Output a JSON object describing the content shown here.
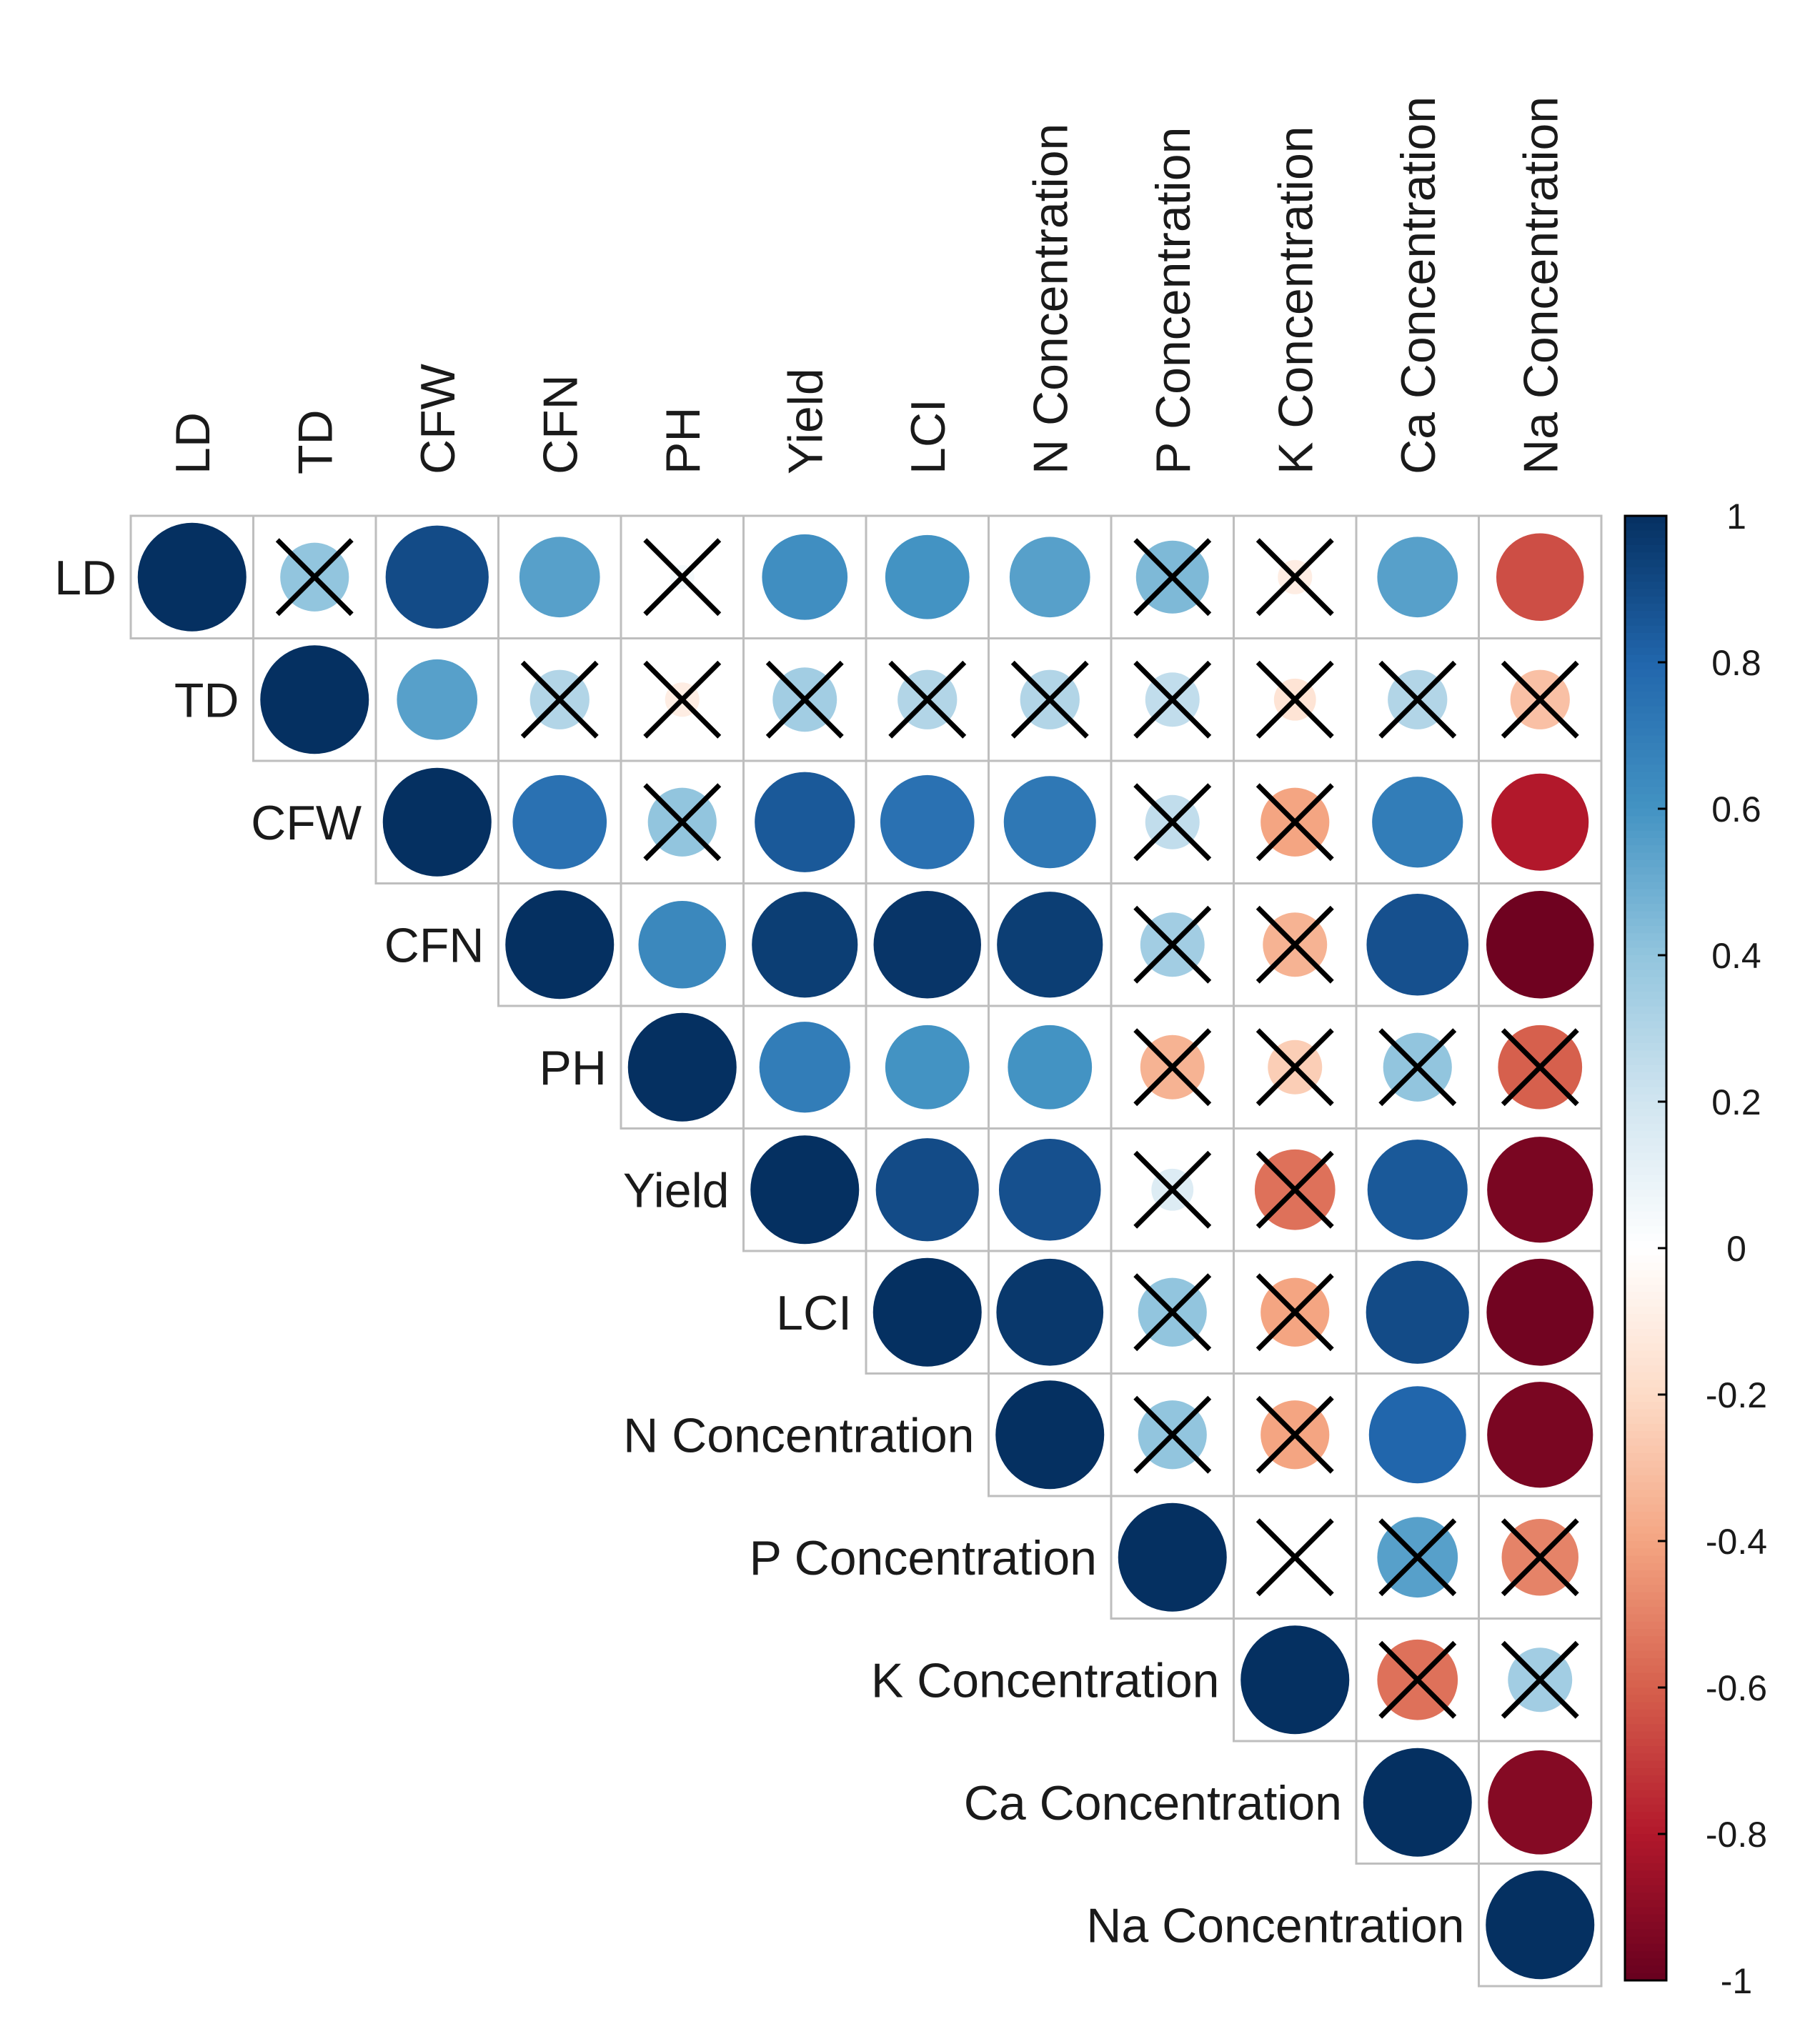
{
  "chart_data": {
    "type": "heatmap",
    "subtype": "correlation-matrix-upper-circles",
    "variables": [
      "LD",
      "TD",
      "CFW",
      "CFN",
      "PH",
      "Yield",
      "LCI",
      "N Concentration",
      "P Concentration",
      "K Concentration",
      "Ca Concentration",
      "Na Concentration"
    ],
    "matrix": [
      [
        1.0,
        0.4,
        0.9,
        0.55,
        0.05,
        0.62,
        0.6,
        0.55,
        0.45,
        -0.1,
        0.55,
        -0.65
      ],
      [
        null,
        1.0,
        0.55,
        0.3,
        -0.1,
        0.35,
        0.3,
        0.3,
        0.25,
        -0.15,
        0.3,
        -0.3
      ],
      [
        null,
        null,
        1.0,
        0.75,
        0.4,
        0.85,
        0.75,
        0.72,
        0.25,
        -0.4,
        0.7,
        -0.8
      ],
      [
        null,
        null,
        null,
        1.0,
        0.65,
        0.95,
        0.98,
        0.95,
        0.35,
        -0.35,
        0.88,
        -0.98
      ],
      [
        null,
        null,
        null,
        null,
        1.0,
        0.7,
        0.6,
        0.6,
        -0.35,
        -0.25,
        0.4,
        -0.6
      ],
      [
        null,
        null,
        null,
        null,
        null,
        1.0,
        0.9,
        0.88,
        0.15,
        -0.55,
        0.85,
        -0.95
      ],
      [
        null,
        null,
        null,
        null,
        null,
        null,
        1.0,
        0.97,
        0.4,
        -0.4,
        0.9,
        -0.97
      ],
      [
        null,
        null,
        null,
        null,
        null,
        null,
        null,
        1.0,
        0.4,
        -0.4,
        0.8,
        -0.95
      ],
      [
        null,
        null,
        null,
        null,
        null,
        null,
        null,
        null,
        1.0,
        0.0,
        0.55,
        -0.5
      ],
      [
        null,
        null,
        null,
        null,
        null,
        null,
        null,
        null,
        null,
        1.0,
        -0.55,
        0.35
      ],
      [
        null,
        null,
        null,
        null,
        null,
        null,
        null,
        null,
        null,
        null,
        1.0,
        -0.92
      ],
      [
        null,
        null,
        null,
        null,
        null,
        null,
        null,
        null,
        null,
        null,
        null,
        1.0
      ]
    ],
    "crossed_cells": [
      [
        0,
        1
      ],
      [
        0,
        4
      ],
      [
        0,
        8
      ],
      [
        0,
        9
      ],
      [
        1,
        3
      ],
      [
        1,
        4
      ],
      [
        1,
        5
      ],
      [
        1,
        6
      ],
      [
        1,
        7
      ],
      [
        1,
        8
      ],
      [
        1,
        9
      ],
      [
        1,
        10
      ],
      [
        1,
        11
      ],
      [
        2,
        4
      ],
      [
        2,
        8
      ],
      [
        2,
        9
      ],
      [
        3,
        8
      ],
      [
        3,
        9
      ],
      [
        4,
        8
      ],
      [
        4,
        9
      ],
      [
        4,
        10
      ],
      [
        4,
        11
      ],
      [
        5,
        8
      ],
      [
        5,
        9
      ],
      [
        6,
        8
      ],
      [
        6,
        9
      ],
      [
        7,
        8
      ],
      [
        7,
        9
      ],
      [
        8,
        9
      ],
      [
        8,
        10
      ],
      [
        8,
        11
      ],
      [
        9,
        10
      ],
      [
        9,
        11
      ]
    ],
    "colorbar": {
      "range": [
        -1,
        1
      ],
      "ticks": [
        "1",
        "0.8",
        "0.6",
        "0.4",
        "0.2",
        "0",
        "-0.2",
        "-0.4",
        "-0.6",
        "-0.8",
        "-1"
      ],
      "palette": [
        "#67001F",
        "#B2182B",
        "#D6604D",
        "#F4A582",
        "#FDDBC7",
        "#FFFFFF",
        "#D1E5F0",
        "#92C5DE",
        "#4393C3",
        "#2166AC",
        "#053061"
      ]
    },
    "title": "",
    "xlabel": "",
    "ylabel": ""
  },
  "colors": {
    "grid": "#BEBEBE",
    "cross": "#000000",
    "background": "#FFFFFF"
  }
}
